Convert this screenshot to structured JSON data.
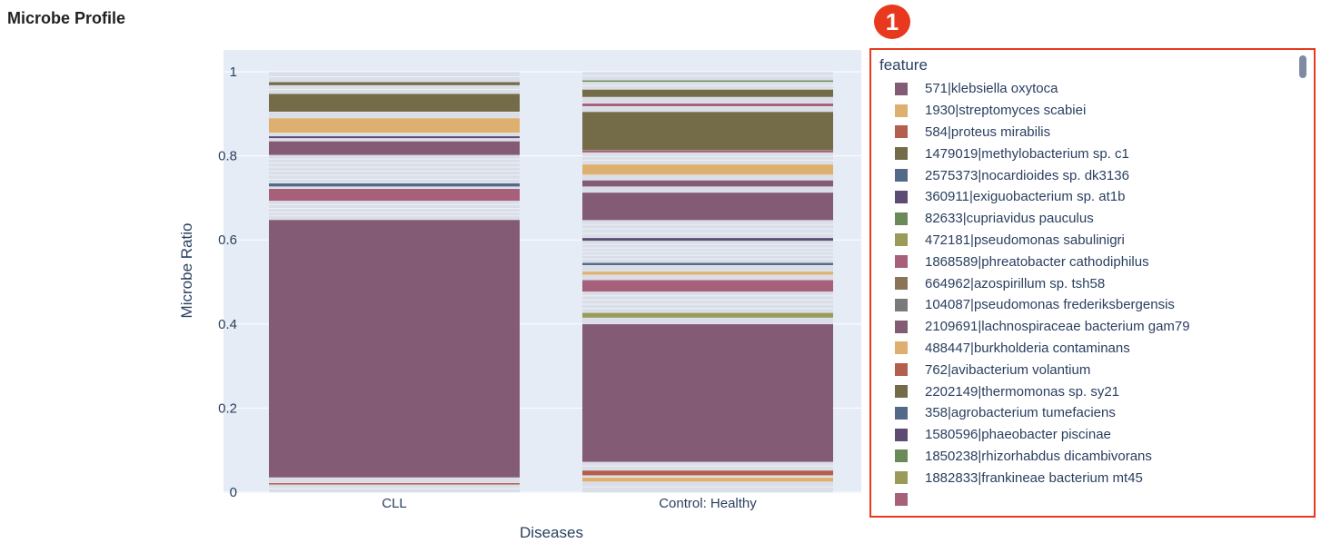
{
  "title": "Microbe Profile",
  "annotation_badge": "1",
  "colors": {
    "plot_bg": "#e5ecf6",
    "grid": "#ffffff",
    "thin_band": "#d9dee8",
    "highlight": "#e8381e"
  },
  "chart_data": {
    "type": "bar",
    "stacked": true,
    "categories": [
      "CLL",
      "Control: Healthy"
    ],
    "xlabel": "Diseases",
    "ylabel": "Microbe Ratio",
    "ylim": [
      0,
      1
    ],
    "yticks": [
      "0",
      "0.2",
      "0.4",
      "0.6",
      "0.8",
      "1"
    ],
    "ytick_values": [
      0,
      0.2,
      0.4,
      0.6,
      0.8,
      1
    ],
    "grid": true,
    "legend_position": "right",
    "segments": {
      "CLL": [
        {
          "color": "#d9dee8",
          "from": 0.0,
          "to": 0.018
        },
        {
          "color": "#b35e4f",
          "from": 0.018,
          "to": 0.022
        },
        {
          "color": "#d9dee8",
          "from": 0.022,
          "to": 0.035
        },
        {
          "color": "#845b75",
          "from": 0.035,
          "to": 0.648
        },
        {
          "color": "#d9dee8",
          "from": 0.648,
          "to": 0.693
        },
        {
          "color": "#a6607a",
          "from": 0.693,
          "to": 0.722
        },
        {
          "color": "#d9dee8",
          "from": 0.722,
          "to": 0.727
        },
        {
          "color": "#52698a",
          "from": 0.727,
          "to": 0.735
        },
        {
          "color": "#d9dee8",
          "from": 0.735,
          "to": 0.802
        },
        {
          "color": "#845b75",
          "from": 0.802,
          "to": 0.835
        },
        {
          "color": "#d9dee8",
          "from": 0.835,
          "to": 0.842
        },
        {
          "color": "#5c4b72",
          "from": 0.842,
          "to": 0.847
        },
        {
          "color": "#d9dee8",
          "from": 0.847,
          "to": 0.855
        },
        {
          "color": "#deb06f",
          "from": 0.855,
          "to": 0.89
        },
        {
          "color": "#d9dee8",
          "from": 0.89,
          "to": 0.905
        },
        {
          "color": "#746c48",
          "from": 0.905,
          "to": 0.948
        },
        {
          "color": "#d9dee8",
          "from": 0.948,
          "to": 0.968
        },
        {
          "color": "#746c48",
          "from": 0.968,
          "to": 0.976
        },
        {
          "color": "#d9dee8",
          "from": 0.976,
          "to": 1.0
        }
      ],
      "Control: Healthy": [
        {
          "color": "#d9dee8",
          "from": 0.0,
          "to": 0.025
        },
        {
          "color": "#deb06f",
          "from": 0.025,
          "to": 0.035
        },
        {
          "color": "#d9dee8",
          "from": 0.035,
          "to": 0.04
        },
        {
          "color": "#b35e4f",
          "from": 0.04,
          "to": 0.052
        },
        {
          "color": "#d9dee8",
          "from": 0.052,
          "to": 0.072
        },
        {
          "color": "#845b75",
          "from": 0.072,
          "to": 0.4
        },
        {
          "color": "#d9dee8",
          "from": 0.4,
          "to": 0.415
        },
        {
          "color": "#9a9a5a",
          "from": 0.415,
          "to": 0.427
        },
        {
          "color": "#d9dee8",
          "from": 0.427,
          "to": 0.477
        },
        {
          "color": "#a6607a",
          "from": 0.477,
          "to": 0.505
        },
        {
          "color": "#d9dee8",
          "from": 0.505,
          "to": 0.517
        },
        {
          "color": "#deb06f",
          "from": 0.517,
          "to": 0.525
        },
        {
          "color": "#d9dee8",
          "from": 0.525,
          "to": 0.54
        },
        {
          "color": "#52698a",
          "from": 0.54,
          "to": 0.546
        },
        {
          "color": "#d9dee8",
          "from": 0.546,
          "to": 0.598
        },
        {
          "color": "#5c4b72",
          "from": 0.598,
          "to": 0.605
        },
        {
          "color": "#d9dee8",
          "from": 0.605,
          "to": 0.647
        },
        {
          "color": "#845b75",
          "from": 0.647,
          "to": 0.713
        },
        {
          "color": "#d9dee8",
          "from": 0.713,
          "to": 0.727
        },
        {
          "color": "#845b75",
          "from": 0.727,
          "to": 0.742
        },
        {
          "color": "#d9dee8",
          "from": 0.742,
          "to": 0.755
        },
        {
          "color": "#deb06f",
          "from": 0.755,
          "to": 0.78
        },
        {
          "color": "#d9dee8",
          "from": 0.78,
          "to": 0.808
        },
        {
          "color": "#a6607a",
          "from": 0.808,
          "to": 0.813
        },
        {
          "color": "#746c48",
          "from": 0.813,
          "to": 0.905
        },
        {
          "color": "#d9dee8",
          "from": 0.905,
          "to": 0.918
        },
        {
          "color": "#a6607a",
          "from": 0.918,
          "to": 0.925
        },
        {
          "color": "#d9dee8",
          "from": 0.925,
          "to": 0.94
        },
        {
          "color": "#746c48",
          "from": 0.94,
          "to": 0.958
        },
        {
          "color": "#d9dee8",
          "from": 0.958,
          "to": 0.976
        },
        {
          "color": "#6b8a5a",
          "from": 0.976,
          "to": 0.98
        },
        {
          "color": "#d9dee8",
          "from": 0.98,
          "to": 1.0
        }
      ]
    }
  },
  "legend": {
    "title": "feature",
    "items": [
      {
        "label": "571|klebsiella oxytoca",
        "color": "#845b75"
      },
      {
        "label": "1930|streptomyces scabiei",
        "color": "#deb06f"
      },
      {
        "label": "584|proteus mirabilis",
        "color": "#b35e4f"
      },
      {
        "label": "1479019|methylobacterium sp. c1",
        "color": "#746c48"
      },
      {
        "label": "2575373|nocardioides sp. dk3136",
        "color": "#52698a"
      },
      {
        "label": "360911|exiguobacterium sp. at1b",
        "color": "#5c4b72"
      },
      {
        "label": "82633|cupriavidus pauculus",
        "color": "#6b8a5a"
      },
      {
        "label": "472181|pseudomonas sabulinigri",
        "color": "#9a9a5a"
      },
      {
        "label": "1868589|phreatobacter cathodiphilus",
        "color": "#a6607a"
      },
      {
        "label": "664962|azospirillum sp. tsh58",
        "color": "#8a7456"
      },
      {
        "label": "104087|pseudomonas frederiksbergensis",
        "color": "#7a7a7a"
      },
      {
        "label": "2109691|lachnospiraceae bacterium gam79",
        "color": "#845b75"
      },
      {
        "label": "488447|burkholderia contaminans",
        "color": "#deb06f"
      },
      {
        "label": "762|avibacterium volantium",
        "color": "#b35e4f"
      },
      {
        "label": "2202149|thermomonas sp. sy21",
        "color": "#746c48"
      },
      {
        "label": "358|agrobacterium tumefaciens",
        "color": "#52698a"
      },
      {
        "label": "1580596|phaeobacter piscinae",
        "color": "#5c4b72"
      },
      {
        "label": "1850238|rhizorhabdus dicambivorans",
        "color": "#6b8a5a"
      },
      {
        "label": "1882833|frankineae bacterium mt45",
        "color": "#9a9a5a"
      }
    ],
    "partial_item_color": "#a6607a"
  }
}
